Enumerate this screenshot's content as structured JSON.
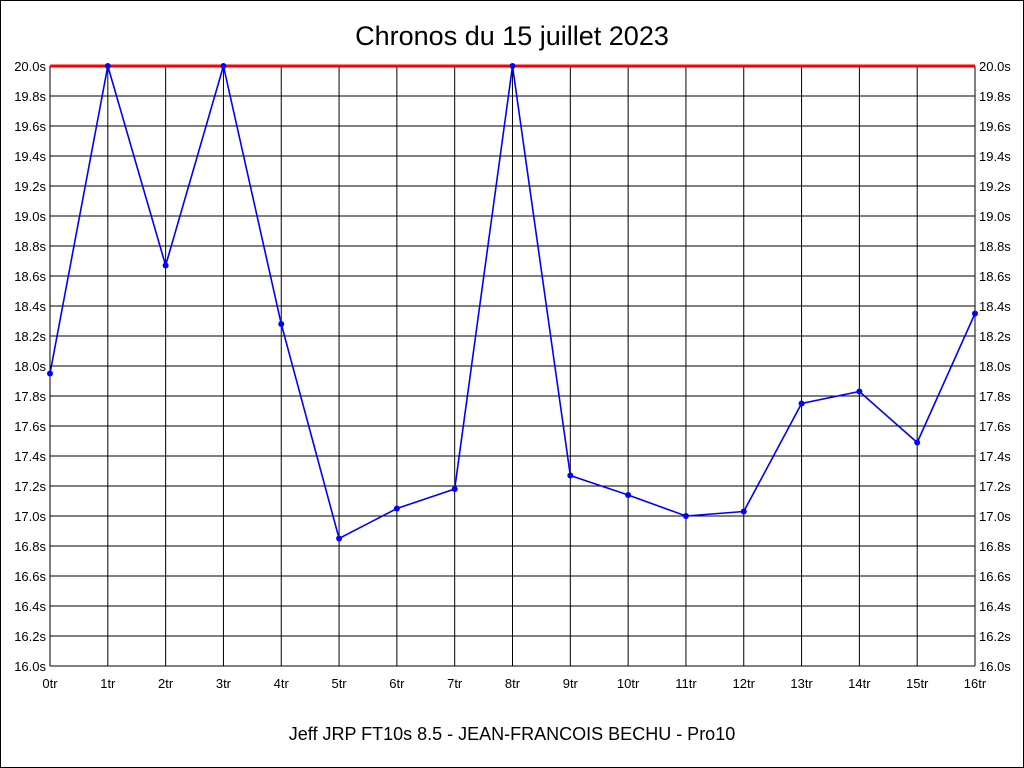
{
  "chart_data": {
    "type": "line",
    "title": "Chronos du 15 juillet 2023",
    "subtitle": "Jeff JRP FT10s 8.5 - JEAN-FRANCOIS BECHU - Pro10",
    "categories": [
      "0tr",
      "1tr",
      "2tr",
      "3tr",
      "4tr",
      "5tr",
      "6tr",
      "7tr",
      "8tr",
      "9tr",
      "10tr",
      "11tr",
      "12tr",
      "13tr",
      "14tr",
      "15tr",
      "16tr"
    ],
    "y_ticks": [
      "16.0s",
      "16.2s",
      "16.4s",
      "16.6s",
      "16.8s",
      "17.0s",
      "17.2s",
      "17.4s",
      "17.6s",
      "17.8s",
      "18.0s",
      "18.2s",
      "18.4s",
      "18.6s",
      "18.8s",
      "19.0s",
      "19.2s",
      "19.4s",
      "19.6s",
      "19.8s",
      "20.0s"
    ],
    "ylim": [
      16.0,
      20.0
    ],
    "grid": true,
    "series": [
      {
        "color": "#0000ff",
        "values": [
          17.95,
          20.0,
          18.67,
          20.0,
          18.28,
          16.85,
          17.05,
          17.18,
          20.0,
          17.27,
          17.14,
          17.0,
          17.03,
          17.75,
          17.83,
          17.49,
          18.35
        ]
      }
    ],
    "reference_line": {
      "value": 20.0,
      "color": "#ff0000"
    },
    "grid_color": "#000000"
  }
}
